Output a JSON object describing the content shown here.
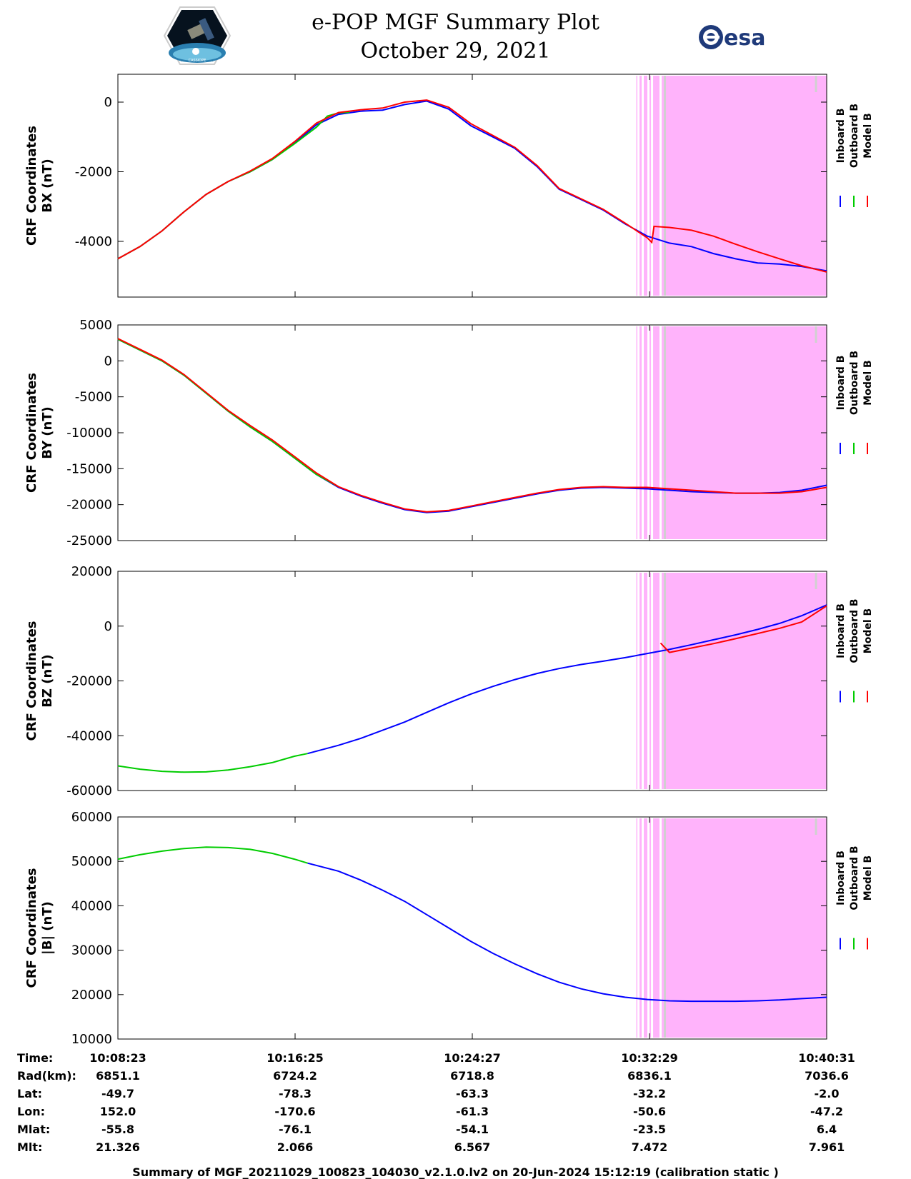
{
  "header": {
    "title_line1": "e-POP MGF Summary Plot",
    "title_line2": "October 29, 2021",
    "left_logo": "cassiope-mission-logo",
    "right_logo": "esa-logo",
    "right_logo_text": "esa",
    "left_logo_text": "CASSIOPE"
  },
  "colors": {
    "inboard": "#0000ff",
    "outboard": "#00cc00",
    "model": "#ff0000",
    "shaded_region": "#ffb3fb",
    "gap_lines": "#d0d0d0"
  },
  "legend": [
    "Inboard B",
    "Outboard B",
    "Model B"
  ],
  "chart_data": [
    {
      "type": "line",
      "ylabel_line1": "CRF Coordinates",
      "ylabel_line2": "BX (nT)",
      "ylim": [
        -5600,
        800
      ],
      "yticks": [
        0,
        -2000,
        -4000
      ],
      "x_minutes_range": [
        0,
        32.13
      ],
      "shaded_from": 23.5,
      "series": [
        {
          "name": "Inboard B",
          "color": "#0000ff",
          "x": [
            0,
            1,
            2,
            3,
            4,
            5,
            6,
            7,
            8,
            9,
            10,
            11,
            12,
            13,
            14,
            15,
            16,
            17,
            18,
            19,
            20,
            21,
            22,
            23,
            24,
            25,
            26,
            27,
            28,
            29,
            30,
            31,
            32.13
          ],
          "y": [
            -4500,
            -4150,
            -3700,
            -3150,
            -2650,
            -2280,
            -2000,
            -1650,
            -1180,
            -650,
            -350,
            -260,
            -230,
            -70,
            30,
            -200,
            -680,
            -1000,
            -1330,
            -1850,
            -2500,
            -2800,
            -3100,
            -3500,
            -3850,
            -4050,
            -4150,
            -4350,
            -4500,
            -4620,
            -4650,
            -4720,
            -4850
          ]
        },
        {
          "name": "Outboard B",
          "color": "#00cc00",
          "x": [
            0,
            1,
            2,
            3,
            4,
            5,
            6,
            7,
            8,
            9,
            9.5,
            10,
            10.5
          ],
          "y": [
            -4500,
            -4150,
            -3700,
            -3150,
            -2650,
            -2280,
            -2000,
            -1650,
            -1200,
            -720,
            -400,
            -310,
            -290
          ]
        },
        {
          "name": "Model B",
          "color": "#ff0000",
          "x": [
            0,
            1,
            2,
            3,
            4,
            5,
            6,
            7,
            8,
            9,
            10,
            11,
            12,
            13,
            14,
            15,
            16,
            17,
            18,
            19,
            20,
            21,
            22,
            23,
            24,
            24.2,
            24.3,
            25,
            26,
            27,
            28,
            29,
            30,
            31,
            32.13
          ],
          "y": [
            -4500,
            -4150,
            -3700,
            -3150,
            -2650,
            -2280,
            -1980,
            -1620,
            -1140,
            -600,
            -300,
            -220,
            -170,
            0,
            60,
            -150,
            -620,
            -960,
            -1300,
            -1820,
            -2480,
            -2780,
            -3080,
            -3480,
            -3900,
            -4030,
            -3570,
            -3600,
            -3680,
            -3850,
            -4080,
            -4300,
            -4500,
            -4700,
            -4880
          ]
        }
      ]
    },
    {
      "type": "line",
      "ylabel_line1": "CRF Coordinates",
      "ylabel_line2": "BY (nT)",
      "ylim": [
        -25000,
        5000
      ],
      "yticks": [
        5000,
        0,
        -5000,
        -10000,
        -15000,
        -20000,
        -25000
      ],
      "x_minutes_range": [
        0,
        32.13
      ],
      "shaded_from": 23.5,
      "series": [
        {
          "name": "Inboard B",
          "color": "#0000ff",
          "x": [
            0,
            1,
            2,
            3,
            4,
            5,
            6,
            7,
            8,
            9,
            10,
            11,
            12,
            13,
            14,
            15,
            16,
            17,
            18,
            19,
            20,
            21,
            22,
            23,
            24,
            25,
            26,
            27,
            28,
            29,
            30,
            31,
            32.13
          ],
          "y": [
            3000,
            1500,
            0,
            -2000,
            -4500,
            -7000,
            -9200,
            -11200,
            -13500,
            -15800,
            -17600,
            -18800,
            -19800,
            -20700,
            -21100,
            -20900,
            -20300,
            -19700,
            -19100,
            -18500,
            -18000,
            -17700,
            -17600,
            -17700,
            -17800,
            -18000,
            -18200,
            -18300,
            -18400,
            -18400,
            -18300,
            -18000,
            -17300
          ]
        },
        {
          "name": "Outboard B",
          "color": "#00cc00",
          "x": [
            0,
            1,
            2,
            3,
            4,
            5,
            6,
            7,
            8,
            9,
            10
          ],
          "y": [
            3000,
            1500,
            0,
            -2000,
            -4500,
            -7000,
            -9200,
            -11200,
            -13500,
            -15800,
            -17500
          ]
        },
        {
          "name": "Model B",
          "color": "#ff0000",
          "x": [
            0,
            1,
            2,
            3,
            4,
            5,
            6,
            7,
            8,
            9,
            10,
            11,
            12,
            13,
            14,
            15,
            16,
            17,
            18,
            19,
            20,
            21,
            22,
            23,
            24,
            25,
            26,
            27,
            28,
            29,
            30,
            31,
            32.13
          ],
          "y": [
            3100,
            1600,
            100,
            -1900,
            -4400,
            -6900,
            -9000,
            -11000,
            -13300,
            -15600,
            -17500,
            -18700,
            -19700,
            -20600,
            -21000,
            -20800,
            -20200,
            -19600,
            -19000,
            -18400,
            -17900,
            -17600,
            -17500,
            -17600,
            -17600,
            -17800,
            -18000,
            -18200,
            -18400,
            -18400,
            -18400,
            -18200,
            -17600
          ]
        }
      ]
    },
    {
      "type": "line",
      "ylabel_line1": "CRF Coordinates",
      "ylabel_line2": "BZ (nT)",
      "ylim": [
        -60000,
        20000
      ],
      "yticks": [
        20000,
        0,
        -20000,
        -40000,
        -60000
      ],
      "x_minutes_range": [
        0,
        32.13
      ],
      "shaded_from": 23.5,
      "series": [
        {
          "name": "Inboard B",
          "color": "#0000ff",
          "x": [
            8.6,
            10,
            11,
            12,
            13,
            14,
            15,
            16,
            17,
            18,
            19,
            20,
            21,
            22,
            23,
            24,
            25,
            26,
            27,
            28,
            29,
            30,
            31,
            32.13
          ],
          "y": [
            -46500,
            -43500,
            -41000,
            -38000,
            -35000,
            -31500,
            -28000,
            -24800,
            -22000,
            -19500,
            -17300,
            -15500,
            -14000,
            -12800,
            -11500,
            -10000,
            -8500,
            -6800,
            -5000,
            -3200,
            -1200,
            1000,
            3800,
            7700
          ]
        },
        {
          "name": "Outboard B",
          "color": "#00cc00",
          "x": [
            0,
            1,
            2,
            3,
            4,
            5,
            6,
            7,
            8,
            8.6
          ],
          "y": [
            -51000,
            -52200,
            -53000,
            -53300,
            -53200,
            -52500,
            -51300,
            -49800,
            -47500,
            -46500
          ]
        },
        {
          "name": "Model B",
          "color": "#ff0000",
          "x": [
            24.6,
            25,
            26,
            27,
            28,
            29,
            30,
            31,
            32.13
          ],
          "y": [
            -6200,
            -9600,
            -8000,
            -6400,
            -4600,
            -2700,
            -800,
            1500,
            7400
          ]
        }
      ]
    },
    {
      "type": "line",
      "ylabel_line1": "CRF Coordinates",
      "ylabel_line2": "|B| (nT)",
      "ylim": [
        10000,
        60000
      ],
      "yticks": [
        60000,
        50000,
        40000,
        30000,
        20000,
        10000
      ],
      "x_minutes_range": [
        0,
        32.13
      ],
      "shaded_from": 23.5,
      "series": [
        {
          "name": "Inboard B",
          "color": "#0000ff",
          "x": [
            8.6,
            10,
            11,
            12,
            13,
            14,
            15,
            16,
            17,
            18,
            19,
            20,
            21,
            22,
            23,
            24,
            25,
            26,
            27,
            28,
            29,
            30,
            31,
            32.13
          ],
          "y": [
            49600,
            47800,
            45800,
            43500,
            41000,
            38000,
            35000,
            32000,
            29300,
            26900,
            24700,
            22800,
            21300,
            20200,
            19400,
            18900,
            18600,
            18500,
            18500,
            18500,
            18600,
            18800,
            19100,
            19400
          ]
        },
        {
          "name": "Outboard B",
          "color": "#00cc00",
          "x": [
            0,
            1,
            2,
            3,
            4,
            5,
            6,
            7,
            8,
            8.6
          ],
          "y": [
            50500,
            51500,
            52300,
            52900,
            53200,
            53100,
            52700,
            51800,
            50500,
            49600
          ]
        }
      ]
    }
  ],
  "info": {
    "labels": [
      "Time:",
      "Rad(km):",
      "Lat:",
      "Lon:",
      "Mlat:",
      "Mlt:"
    ],
    "columns": [
      {
        "values": [
          "10:08:23",
          "6851.1",
          "-49.7",
          "152.0",
          "-55.8",
          "21.326"
        ]
      },
      {
        "values": [
          "10:16:25",
          "6724.2",
          "-78.3",
          "-170.6",
          "-76.1",
          "2.066"
        ]
      },
      {
        "values": [
          "10:24:27",
          "6718.8",
          "-63.3",
          "-61.3",
          "-54.1",
          "6.567"
        ]
      },
      {
        "values": [
          "10:32:29",
          "6836.1",
          "-32.2",
          "-50.6",
          "-23.5",
          "7.472"
        ]
      },
      {
        "values": [
          "10:40:31",
          "7036.6",
          "-2.0",
          "-47.2",
          "6.4",
          "7.961"
        ]
      }
    ]
  },
  "footer": "Summary of MGF_20211029_100823_104030_v2.1.0.lv2 on 20-Jun-2024 15:12:19 (calibration static )"
}
